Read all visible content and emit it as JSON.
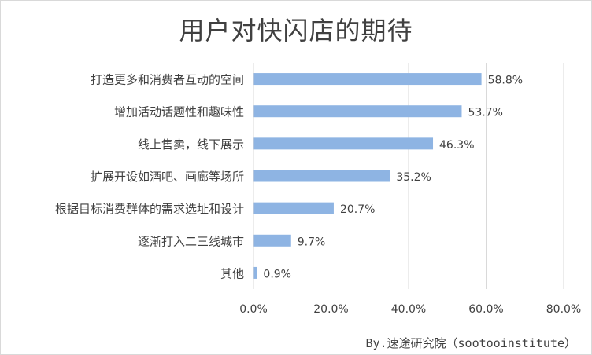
{
  "chart_data": {
    "type": "bar",
    "orientation": "horizontal",
    "title": "用户对快闪店的期待",
    "categories": [
      "打造更多和消费者互动的空间",
      "增加活动话题性和趣味性",
      "线上售卖，线下展示",
      "扩展开设如酒吧、画廊等场所",
      "根据目标消费群体的需求选址和设计",
      "逐渐打入二三线城市",
      "其他"
    ],
    "values": [
      58.8,
      53.7,
      46.3,
      35.2,
      20.7,
      9.7,
      0.9
    ],
    "value_labels": [
      "58.8%",
      "53.7%",
      "46.3%",
      "35.2%",
      "20.7%",
      "9.7%",
      "0.9%"
    ],
    "xlim": [
      0,
      80
    ],
    "xticks": [
      0,
      20,
      40,
      60,
      80
    ],
    "xtick_labels": [
      "0.0%",
      "20.0%",
      "40.0%",
      "60.0%",
      "80.0%"
    ],
    "xlabel": "",
    "ylabel": "",
    "grid": "vertical",
    "legend": "none",
    "bar_color": "#8eb4e3",
    "grid_color": "#d9d9d9"
  },
  "source_note": "By.速途研究院（sootooinstitute）"
}
